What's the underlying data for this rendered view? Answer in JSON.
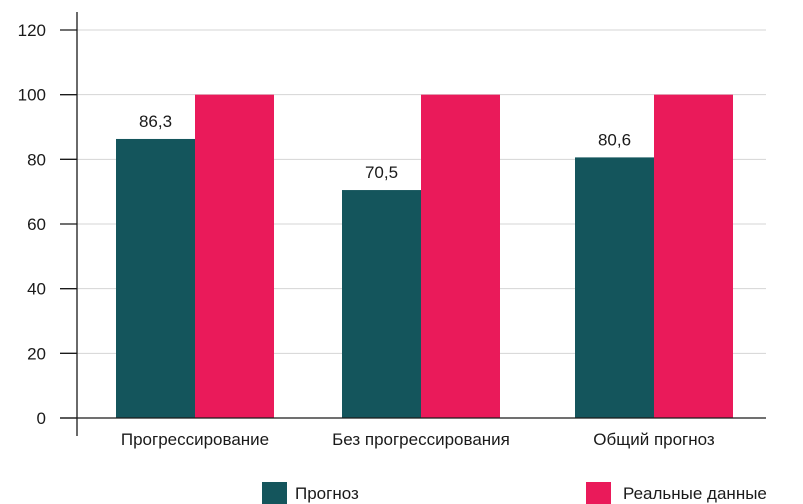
{
  "chart_data": {
    "type": "bar",
    "categories": [
      "Прогрессирование",
      "Без прогрессирования",
      "Общий прогноз"
    ],
    "series": [
      {
        "name": "Прогноз",
        "values": [
          86.3,
          70.5,
          80.6
        ],
        "color": "#14555c",
        "labels": [
          "86,3",
          "70,5",
          "80,6"
        ]
      },
      {
        "name": "Реальные данные",
        "values": [
          100,
          100,
          100
        ],
        "color": "#ea1a5a",
        "labels": [
          "",
          "",
          ""
        ]
      }
    ],
    "ylim": [
      0,
      120
    ],
    "yticks": [
      0,
      20,
      40,
      60,
      80,
      100,
      120
    ],
    "grid": true,
    "grid_color": "#d4d4d4",
    "legend": "bottom"
  }
}
